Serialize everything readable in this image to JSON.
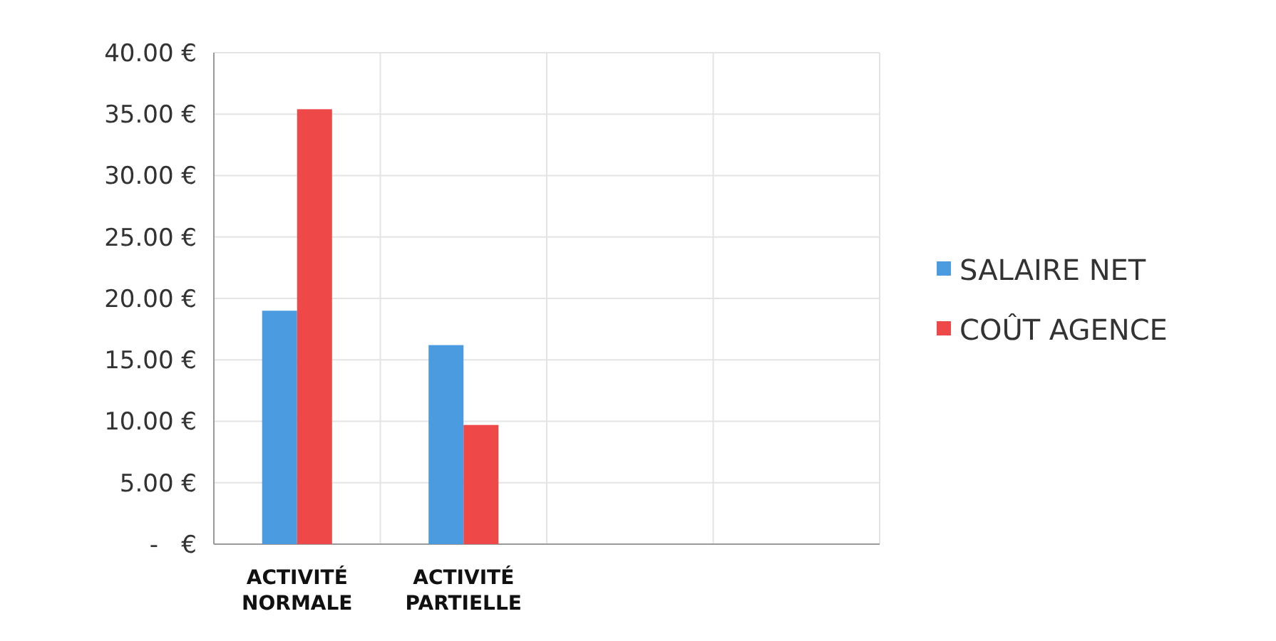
{
  "chart_data": {
    "type": "bar",
    "categories": [
      "ACTIVITÉ NORMALE",
      "ACTIVITÉ PARTIELLE",
      null,
      null
    ],
    "series": [
      {
        "name": "SALAIRE NET",
        "color": "#4a9be0",
        "values": [
          19.0,
          16.2,
          null,
          null
        ]
      },
      {
        "name": "COÛT AGENCE",
        "color": "#ee4848",
        "values": [
          35.4,
          9.7,
          null,
          null
        ]
      }
    ],
    "ylim": [
      0,
      40
    ],
    "yticks": [
      {
        "value": 0,
        "label": "-   €"
      },
      {
        "value": 5,
        "label": "5.00 €"
      },
      {
        "value": 10,
        "label": "10.00 €"
      },
      {
        "value": 15,
        "label": "15.00 €"
      },
      {
        "value": 20,
        "label": "20.00 €"
      },
      {
        "value": 25,
        "label": "25.00 €"
      },
      {
        "value": 30,
        "label": "30.00 €"
      },
      {
        "value": 35,
        "label": "35.00 €"
      },
      {
        "value": 40,
        "label": "40.00 €"
      }
    ],
    "grid": true,
    "legend": "right"
  }
}
